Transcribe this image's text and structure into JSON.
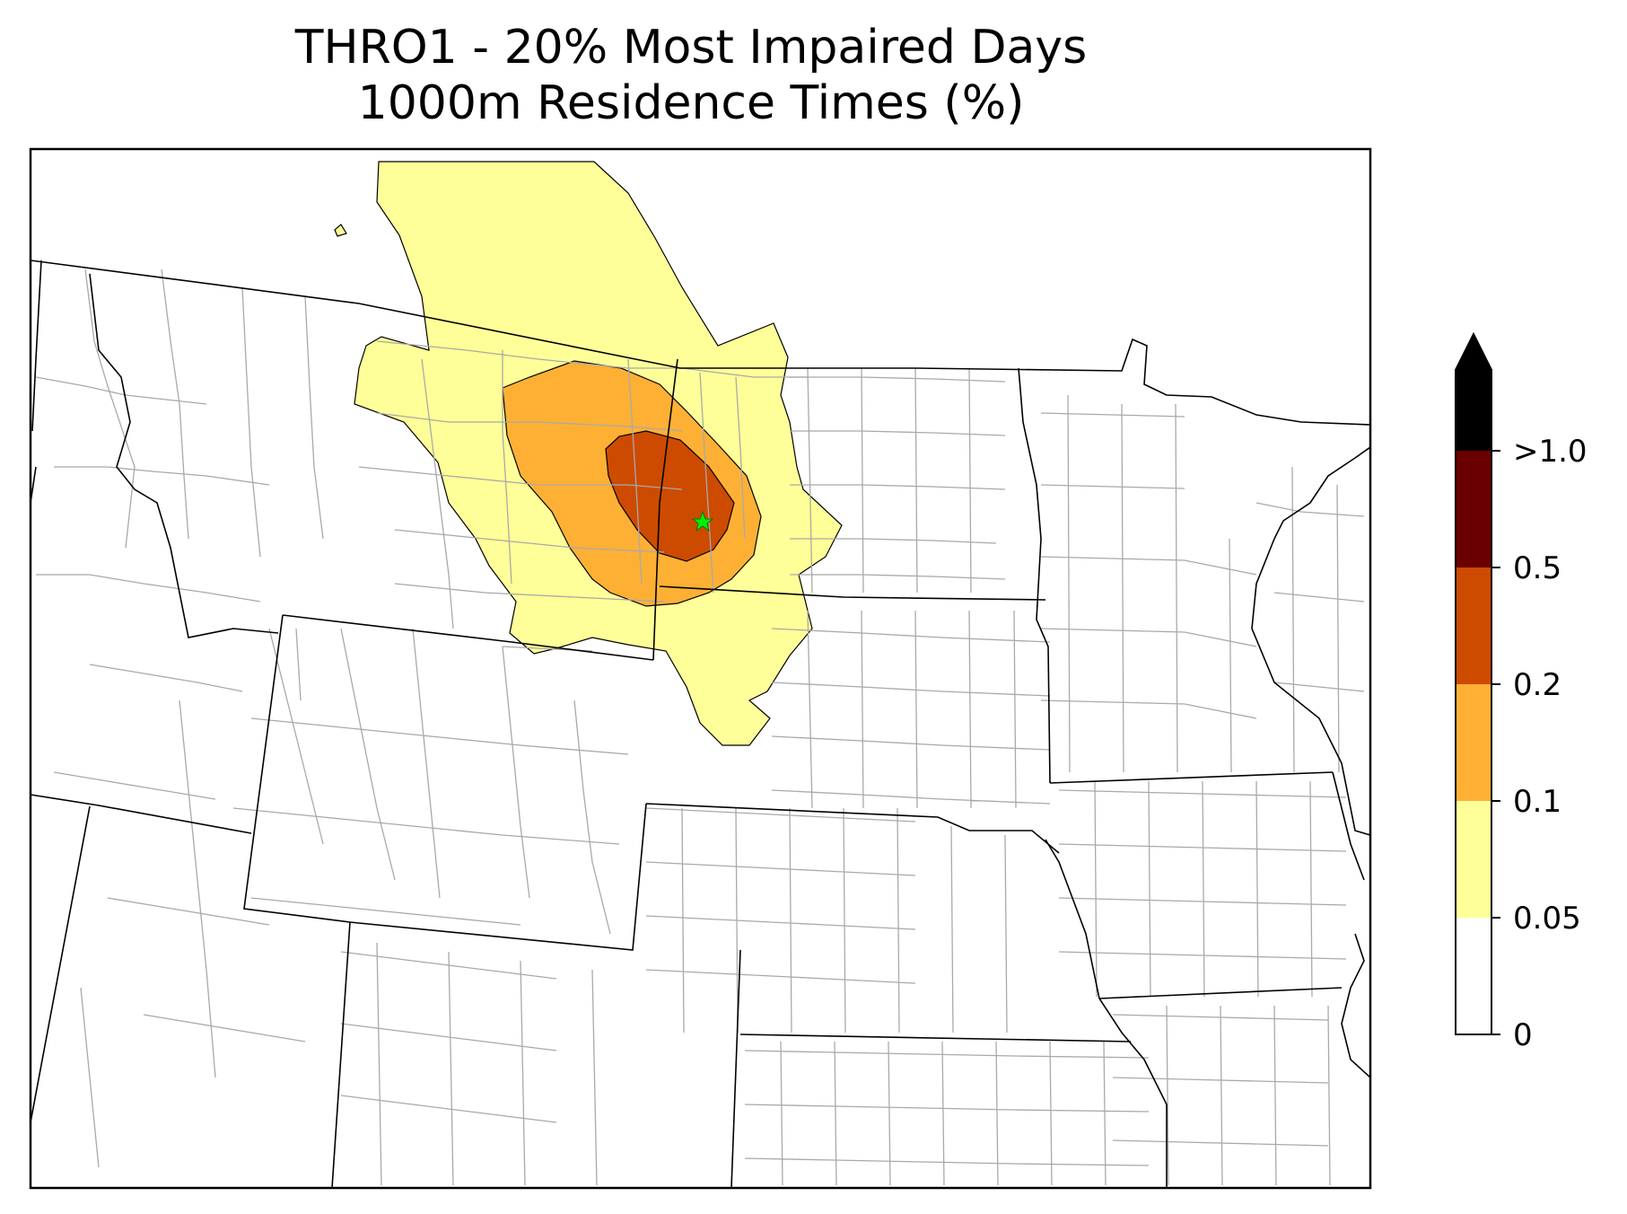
{
  "title": {
    "line1": "THRO1 - 20% Most Impaired Days",
    "line2": "1000m Residence Times (%)"
  },
  "colorbar": {
    "extend": "max",
    "bins": [
      {
        "from": 0,
        "to": 0.05,
        "color": "#ffffff"
      },
      {
        "from": 0.05,
        "to": 0.1,
        "color": "#ffff99"
      },
      {
        "from": 0.1,
        "to": 0.2,
        "color": "#feb035"
      },
      {
        "from": 0.2,
        "to": 0.5,
        "color": "#cd4b00"
      },
      {
        "from": 0.5,
        "to": 1.0,
        "color": "#6b0000"
      },
      {
        "from": 1.0,
        "to": null,
        "color": "#000000"
      }
    ],
    "tick_labels": [
      "0",
      "0.05",
      "0.1",
      "0.2",
      "0.5",
      ">1.0"
    ]
  },
  "contour_colors": {
    "c005": "#ffff99",
    "c01": "#feb035",
    "c02": "#cd4b00"
  },
  "site_marker": {
    "icon": "star-icon",
    "color": "#00ee00"
  }
}
